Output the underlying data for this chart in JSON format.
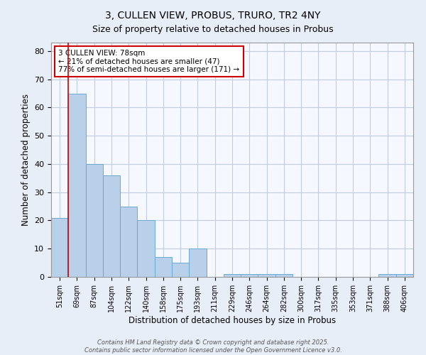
{
  "title": "3, CULLEN VIEW, PROBUS, TRURO, TR2 4NY",
  "subtitle": "Size of property relative to detached houses in Probus",
  "xlabel": "Distribution of detached houses by size in Probus",
  "ylabel": "Number of detached properties",
  "categories": [
    "51sqm",
    "69sqm",
    "87sqm",
    "104sqm",
    "122sqm",
    "140sqm",
    "158sqm",
    "175sqm",
    "193sqm",
    "211sqm",
    "229sqm",
    "246sqm",
    "264sqm",
    "282sqm",
    "300sqm",
    "317sqm",
    "335sqm",
    "353sqm",
    "371sqm",
    "388sqm",
    "406sqm"
  ],
  "values": [
    21,
    65,
    40,
    36,
    25,
    20,
    7,
    5,
    10,
    0,
    1,
    1,
    1,
    1,
    0,
    0,
    0,
    0,
    0,
    1,
    1
  ],
  "bar_color": "#b8d0ea",
  "bar_edge_color": "#6aaad4",
  "red_line_x": 0.5,
  "annotation_text": "3 CULLEN VIEW: 78sqm\n← 21% of detached houses are smaller (47)\n77% of semi-detached houses are larger (171) →",
  "annotation_box_color": "#ffffff",
  "annotation_box_edge_color": "#cc0000",
  "ylim": [
    0,
    83
  ],
  "yticks": [
    0,
    10,
    20,
    30,
    40,
    50,
    60,
    70,
    80
  ],
  "footer_line1": "Contains HM Land Registry data © Crown copyright and database right 2025.",
  "footer_line2": "Contains public sector information licensed under the Open Government Licence v3.0.",
  "background_color": "#e8eef8",
  "plot_background_color": "#f5f8ff",
  "grid_color": "#c0cce0"
}
